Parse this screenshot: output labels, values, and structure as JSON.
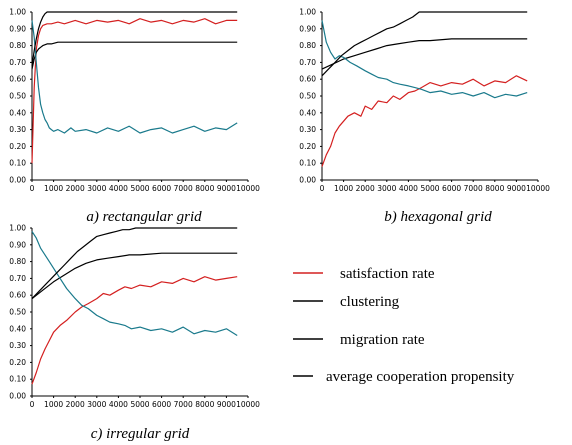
{
  "chart_data": [
    {
      "type": "line",
      "title": "a) rectangular grid",
      "xlabel": "",
      "ylabel": "",
      "xlim": [
        0,
        10000
      ],
      "ylim": [
        0,
        1
      ],
      "x_ticks": [
        "0",
        "1000",
        "2000",
        "3000",
        "4000",
        "5000",
        "6000",
        "7000",
        "8000",
        "9000",
        "10000"
      ],
      "y_ticks": [
        "0.00",
        "0.10",
        "0.20",
        "0.30",
        "0.40",
        "0.50",
        "0.60",
        "0.70",
        "0.80",
        "0.90",
        "1.00"
      ],
      "series": [
        {
          "color": "#d42020",
          "x": [
            0,
            100,
            200,
            300,
            400,
            500,
            700,
            900,
            1200,
            1500,
            2000,
            2500,
            3000,
            3500,
            4000,
            4500,
            5000,
            5500,
            6000,
            6500,
            7000,
            7500,
            8000,
            8500,
            9000,
            9500
          ],
          "values": [
            0.1,
            0.55,
            0.78,
            0.86,
            0.9,
            0.92,
            0.93,
            0.93,
            0.94,
            0.93,
            0.95,
            0.93,
            0.95,
            0.94,
            0.95,
            0.93,
            0.96,
            0.94,
            0.95,
            0.93,
            0.95,
            0.94,
            0.96,
            0.93,
            0.95,
            0.95
          ]
        },
        {
          "color": "#000000",
          "x": [
            0,
            100,
            200,
            300,
            400,
            500,
            700,
            900,
            1200,
            1500,
            2000,
            2500,
            3000,
            3500,
            4000,
            4500,
            5000,
            5500,
            6000,
            6500,
            7000,
            7500,
            8000,
            8500,
            9000,
            9500
          ],
          "values": [
            0.66,
            0.72,
            0.76,
            0.78,
            0.79,
            0.8,
            0.81,
            0.81,
            0.82,
            0.82,
            0.82,
            0.82,
            0.82,
            0.82,
            0.82,
            0.82,
            0.82,
            0.82,
            0.82,
            0.82,
            0.82,
            0.82,
            0.82,
            0.82,
            0.82,
            0.82
          ]
        },
        {
          "color": "#1a7a8c",
          "x": [
            0,
            100,
            200,
            300,
            400,
            500,
            600,
            700,
            800,
            900,
            1000,
            1200,
            1500,
            1800,
            2000,
            2500,
            3000,
            3500,
            4000,
            4500,
            5000,
            5500,
            6000,
            6500,
            7000,
            7500,
            8000,
            8500,
            9000,
            9500
          ],
          "values": [
            0.95,
            0.85,
            0.7,
            0.55,
            0.45,
            0.4,
            0.36,
            0.34,
            0.31,
            0.3,
            0.29,
            0.3,
            0.28,
            0.31,
            0.29,
            0.3,
            0.28,
            0.31,
            0.29,
            0.32,
            0.28,
            0.3,
            0.31,
            0.28,
            0.3,
            0.32,
            0.29,
            0.31,
            0.3,
            0.34
          ]
        },
        {
          "color": "#000000",
          "x": [
            0,
            100,
            200,
            300,
            400,
            500,
            600,
            700,
            800,
            1000,
            2000,
            3000,
            4000,
            5000,
            6000,
            7000,
            8000,
            9000,
            9500
          ],
          "values": [
            0.68,
            0.77,
            0.84,
            0.9,
            0.94,
            0.97,
            0.99,
            1.0,
            1.0,
            1.0,
            1.0,
            1.0,
            1.0,
            1.0,
            1.0,
            1.0,
            1.0,
            1.0,
            1.0
          ]
        }
      ]
    },
    {
      "type": "line",
      "title": "b) hexagonal grid",
      "xlabel": "",
      "ylabel": "",
      "xlim": [
        0,
        10000
      ],
      "ylim": [
        0,
        1
      ],
      "x_ticks": [
        "0",
        "1000",
        "2000",
        "3000",
        "4000",
        "5000",
        "6000",
        "7000",
        "8000",
        "9000",
        "10000"
      ],
      "y_ticks": [
        "0.00",
        "0.10",
        "0.20",
        "0.30",
        "0.40",
        "0.50",
        "0.60",
        "0.70",
        "0.80",
        "0.90",
        "1.00"
      ],
      "series": [
        {
          "color": "#d42020",
          "x": [
            0,
            200,
            400,
            600,
            800,
            1000,
            1200,
            1500,
            1800,
            2000,
            2300,
            2600,
            3000,
            3300,
            3600,
            4000,
            4300,
            4600,
            5000,
            5500,
            6000,
            6500,
            7000,
            7500,
            8000,
            8500,
            9000,
            9500
          ],
          "values": [
            0.08,
            0.15,
            0.2,
            0.28,
            0.32,
            0.35,
            0.38,
            0.4,
            0.38,
            0.44,
            0.42,
            0.47,
            0.46,
            0.5,
            0.48,
            0.52,
            0.53,
            0.55,
            0.58,
            0.56,
            0.58,
            0.57,
            0.6,
            0.56,
            0.59,
            0.58,
            0.62,
            0.59
          ]
        },
        {
          "color": "#000000",
          "x": [
            0,
            500,
            1000,
            1500,
            2000,
            2500,
            3000,
            3500,
            4000,
            4500,
            5000,
            6000,
            7000,
            8000,
            9000,
            9500
          ],
          "values": [
            0.66,
            0.69,
            0.72,
            0.74,
            0.76,
            0.78,
            0.8,
            0.81,
            0.82,
            0.83,
            0.83,
            0.84,
            0.84,
            0.84,
            0.84,
            0.84
          ]
        },
        {
          "color": "#1a7a8c",
          "x": [
            0,
            200,
            400,
            600,
            800,
            1000,
            1300,
            1600,
            2000,
            2300,
            2600,
            3000,
            3300,
            3600,
            4000,
            4300,
            4600,
            5000,
            5500,
            6000,
            6500,
            7000,
            7500,
            8000,
            8500,
            9000,
            9500
          ],
          "values": [
            0.95,
            0.82,
            0.76,
            0.72,
            0.74,
            0.73,
            0.7,
            0.68,
            0.65,
            0.63,
            0.61,
            0.6,
            0.58,
            0.57,
            0.56,
            0.55,
            0.54,
            0.52,
            0.53,
            0.51,
            0.52,
            0.5,
            0.52,
            0.49,
            0.51,
            0.5,
            0.52
          ]
        },
        {
          "color": "#000000",
          "x": [
            0,
            300,
            600,
            900,
            1200,
            1500,
            1800,
            2100,
            2400,
            2700,
            3000,
            3300,
            3600,
            3900,
            4200,
            4500,
            5000,
            6000,
            7000,
            8000,
            9000,
            9500
          ],
          "values": [
            0.62,
            0.66,
            0.7,
            0.74,
            0.77,
            0.8,
            0.82,
            0.84,
            0.86,
            0.88,
            0.9,
            0.91,
            0.93,
            0.95,
            0.97,
            1.0,
            1.0,
            1.0,
            1.0,
            1.0,
            1.0,
            1.0
          ]
        }
      ]
    },
    {
      "type": "line",
      "title": "c) irregular grid",
      "xlabel": "",
      "ylabel": "",
      "xlim": [
        0,
        10000
      ],
      "ylim": [
        0,
        1
      ],
      "x_ticks": [
        "0",
        "1000",
        "2000",
        "3000",
        "4000",
        "5000",
        "6000",
        "7000",
        "8000",
        "9000",
        "10000"
      ],
      "y_ticks": [
        "0.00",
        "0.10",
        "0.20",
        "0.30",
        "0.40",
        "0.50",
        "0.60",
        "0.70",
        "0.80",
        "0.90",
        "1.00"
      ],
      "series": [
        {
          "color": "#d42020",
          "x": [
            0,
            200,
            400,
            600,
            800,
            1000,
            1300,
            1600,
            2000,
            2300,
            2600,
            3000,
            3300,
            3600,
            4000,
            4300,
            4600,
            5000,
            5500,
            6000,
            6500,
            7000,
            7500,
            8000,
            8500,
            9000,
            9500
          ],
          "values": [
            0.07,
            0.14,
            0.22,
            0.28,
            0.33,
            0.38,
            0.42,
            0.45,
            0.5,
            0.53,
            0.55,
            0.58,
            0.61,
            0.6,
            0.63,
            0.65,
            0.64,
            0.66,
            0.65,
            0.68,
            0.67,
            0.7,
            0.68,
            0.71,
            0.69,
            0.7,
            0.71
          ]
        },
        {
          "color": "#000000",
          "x": [
            0,
            500,
            1000,
            1500,
            2000,
            2500,
            3000,
            3500,
            4000,
            4500,
            5000,
            6000,
            7000,
            8000,
            9000,
            9500
          ],
          "values": [
            0.58,
            0.63,
            0.68,
            0.72,
            0.76,
            0.79,
            0.81,
            0.82,
            0.83,
            0.84,
            0.84,
            0.85,
            0.85,
            0.85,
            0.85,
            0.85
          ]
        },
        {
          "color": "#1a7a8c",
          "x": [
            0,
            200,
            400,
            600,
            800,
            1000,
            1300,
            1600,
            2000,
            2300,
            2600,
            3000,
            3300,
            3600,
            4000,
            4300,
            4600,
            5000,
            5500,
            6000,
            6500,
            7000,
            7500,
            8000,
            8500,
            9000,
            9500
          ],
          "values": [
            0.98,
            0.94,
            0.88,
            0.84,
            0.8,
            0.76,
            0.7,
            0.64,
            0.58,
            0.54,
            0.52,
            0.48,
            0.46,
            0.44,
            0.43,
            0.42,
            0.4,
            0.41,
            0.39,
            0.4,
            0.38,
            0.41,
            0.37,
            0.39,
            0.38,
            0.4,
            0.36
          ]
        },
        {
          "color": "#000000",
          "x": [
            0,
            300,
            600,
            900,
            1200,
            1500,
            1800,
            2100,
            2400,
            2700,
            3000,
            3300,
            3600,
            3900,
            4200,
            4500,
            4800,
            5000,
            6000,
            7000,
            8000,
            9000,
            9500
          ],
          "values": [
            0.58,
            0.62,
            0.66,
            0.7,
            0.74,
            0.78,
            0.82,
            0.86,
            0.89,
            0.92,
            0.95,
            0.96,
            0.97,
            0.98,
            0.99,
            0.99,
            1.0,
            1.0,
            1.0,
            1.0,
            1.0,
            1.0,
            1.0
          ]
        }
      ]
    }
  ],
  "legend": [
    {
      "label": "satisfaction rate",
      "color": "#d42020"
    },
    {
      "label": "clustering",
      "color": "#000000"
    },
    {
      "label": "migration rate",
      "color": "#000000"
    },
    {
      "label": "average cooperation propensity",
      "color": "#000000"
    }
  ]
}
